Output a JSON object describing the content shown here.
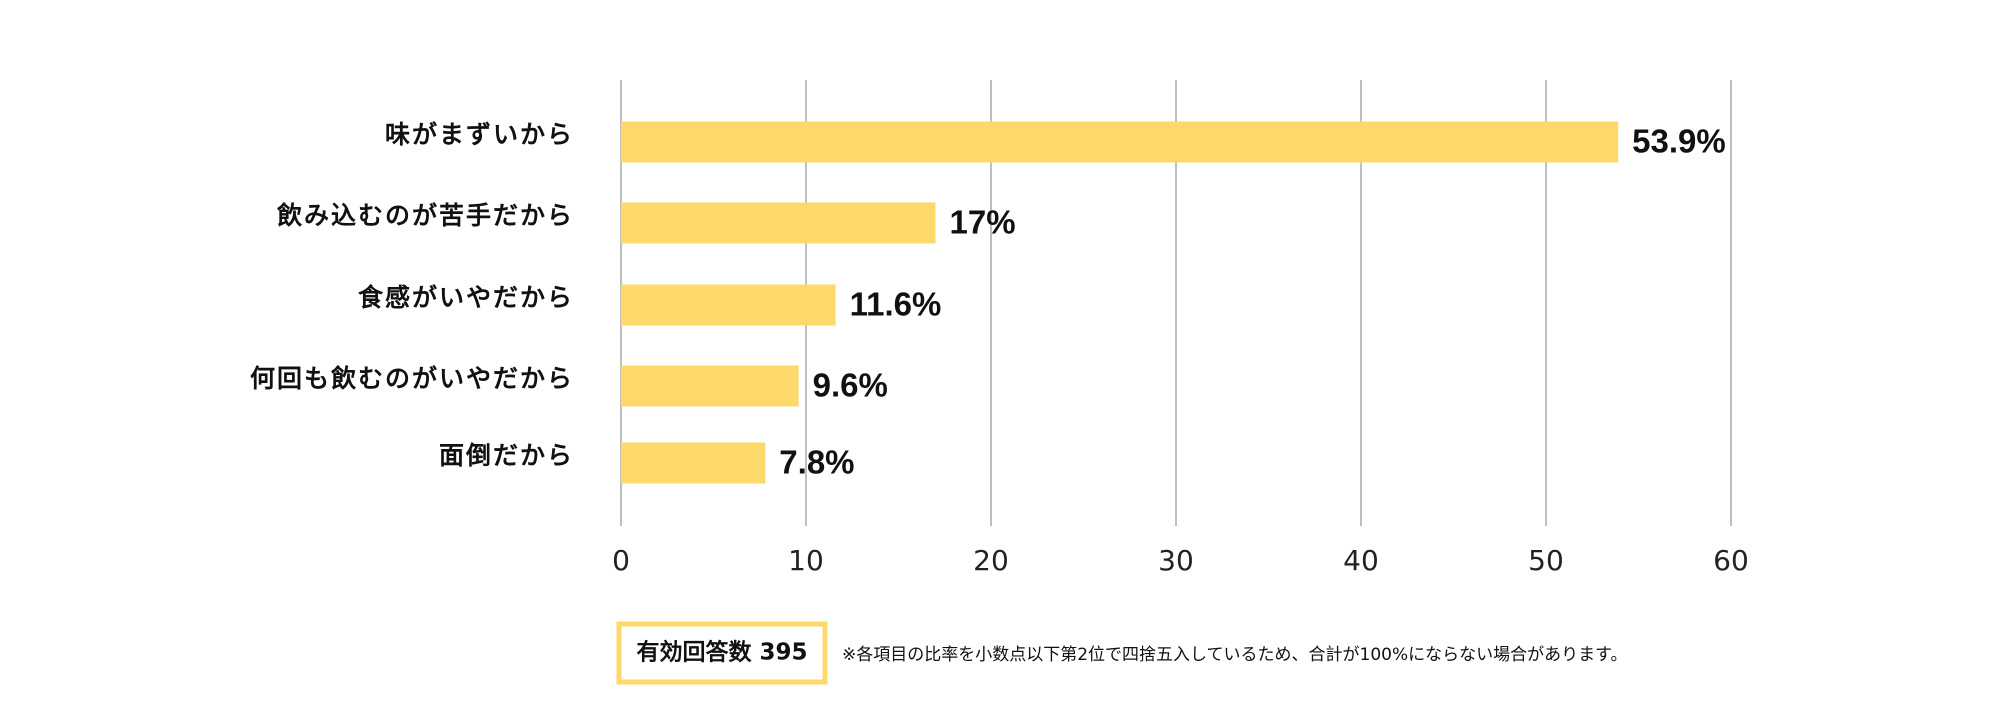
{
  "chart_data": {
    "type": "barh",
    "categories": [
      "味がまずいから",
      "飲み込むのが苦手だから",
      "食感がいやだから",
      "何回も飲むのがいやだから",
      "面倒だから"
    ],
    "values": [
      53.9,
      17,
      11.6,
      9.6,
      7.8
    ],
    "value_labels": [
      "53.9%",
      "17%",
      "11.6%",
      "9.6%",
      "7.8%"
    ],
    "color": "#fdd96c",
    "xlim": [
      0,
      60
    ],
    "xticks": [
      0,
      10,
      20,
      30,
      40,
      50,
      60
    ],
    "grid": true,
    "annotations": [
      "有効回答数 395",
      "※各項目の比率を小数点以下第2位で四捨五入しているため、合計が100%にならない場合があります。"
    ]
  }
}
